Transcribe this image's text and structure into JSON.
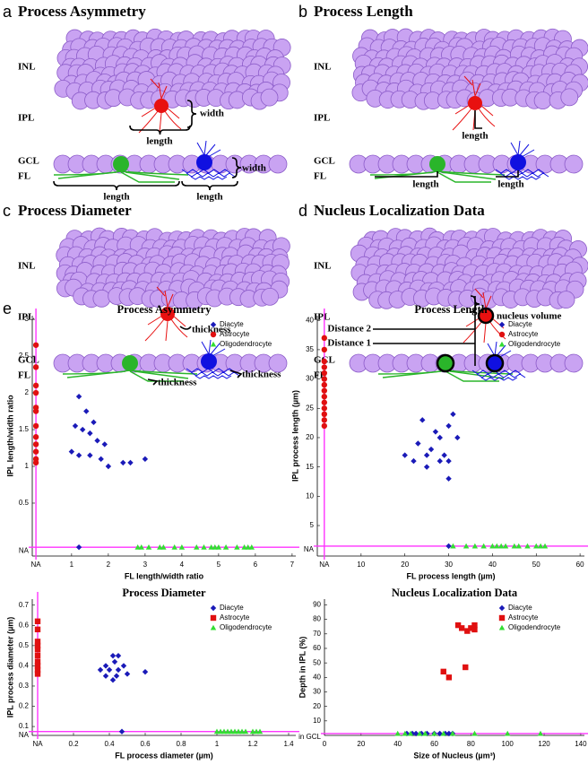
{
  "figure": {
    "panels": [
      {
        "letter": "a",
        "title": "Process Asymmetry",
        "labels": [
          "INL",
          "IPL",
          "GCL",
          "FL",
          "width",
          "length",
          "width",
          "length",
          "length"
        ]
      },
      {
        "letter": "b",
        "title": "Process Length",
        "labels": [
          "INL",
          "IPL",
          "GCL",
          "FL",
          "length",
          "length",
          "length"
        ]
      },
      {
        "letter": "c",
        "title": "Process Diameter",
        "labels": [
          "INL",
          "IPL",
          "GCL",
          "FL",
          "thickness",
          "thickness",
          "thickness"
        ]
      },
      {
        "letter": "d",
        "title": "Nucleus Localization Data",
        "labels": [
          "INL",
          "IPL",
          "GCL",
          "FL",
          "nucleus volume",
          "Distance 2",
          "Distance 1"
        ]
      }
    ],
    "chart_panel_letter": "e"
  },
  "chart_data": [
    {
      "type": "scatter",
      "title": "Process Asymmetry",
      "x_label": "FL length/width ratio",
      "y_label": "IPL length/width ratio",
      "xlim": [
        -0.07,
        7.1
      ],
      "ylim": [
        -0.22,
        3.05
      ],
      "xticks": [
        {
          "value": 0.03,
          "label": "NA"
        },
        1,
        2,
        3,
        4,
        5,
        6,
        7
      ],
      "yticks": [
        {
          "value": -0.1,
          "label": "NA"
        },
        0.5,
        1,
        1.5,
        2,
        2.5,
        3
      ],
      "na_line_color": "#ff33ff",
      "legend": "upper right",
      "series": [
        {
          "name": "Diacyte",
          "color": "#1a1ab8",
          "marker": "diamond",
          "x": [
            1.2,
            1.4,
            1.1,
            1.3,
            1.6,
            1.5,
            1.7,
            1.9,
            1.0,
            1.2,
            1.5,
            1.8,
            2.0,
            2.4,
            2.6,
            3.0,
            1.2
          ],
          "values": [
            1.95,
            1.75,
            1.55,
            1.5,
            1.6,
            1.45,
            1.35,
            1.3,
            1.2,
            1.15,
            1.15,
            1.1,
            1.0,
            1.05,
            1.05,
            1.1,
            -0.1
          ]
        },
        {
          "name": "Astrocyte",
          "color": "#e01010",
          "marker": "circle",
          "x": [
            0.03,
            0.03,
            0.03,
            0.03,
            0.03,
            0.03,
            0.03,
            0.03,
            0.03,
            0.03,
            0.03,
            0.03
          ],
          "values": [
            2.65,
            2.35,
            2.1,
            2.0,
            1.8,
            1.75,
            1.55,
            1.4,
            1.3,
            1.2,
            1.1,
            1.05
          ]
        },
        {
          "name": "Oligodendrocyte",
          "color": "#33dd33",
          "marker": "triangle",
          "x": [
            2.8,
            2.9,
            3.1,
            3.4,
            3.5,
            3.8,
            4.0,
            4.4,
            4.6,
            4.8,
            4.9,
            5.0,
            5.2,
            5.5,
            5.7,
            5.8,
            5.9
          ],
          "values": [
            -0.1,
            -0.1,
            -0.1,
            -0.1,
            -0.1,
            -0.1,
            -0.1,
            -0.1,
            -0.1,
            -0.1,
            -0.1,
            -0.1,
            -0.1,
            -0.1,
            -0.1,
            -0.1,
            -0.1
          ]
        }
      ]
    },
    {
      "type": "scatter",
      "title": "Process Length",
      "x_label": "FL process length (µm)",
      "y_label": "IPL process length (µm)",
      "xlim": [
        0,
        61
      ],
      "ylim": [
        -0.2,
        40.8
      ],
      "xticks": [
        {
          "value": 1.6,
          "label": "NA"
        },
        10,
        20,
        30,
        40,
        50,
        60
      ],
      "yticks": [
        {
          "value": 1.5,
          "label": "NA"
        },
        5,
        10,
        15,
        20,
        25,
        30,
        35,
        40
      ],
      "na_line_color": "#ff33ff",
      "legend": "upper right",
      "series": [
        {
          "name": "Diacyte",
          "color": "#1a1ab8",
          "marker": "diamond",
          "x": [
            20,
            22,
            23,
            24,
            25,
            25,
            26,
            27,
            28,
            28,
            29,
            30,
            30,
            30,
            31,
            32,
            30
          ],
          "values": [
            17,
            16,
            19,
            23,
            15,
            17,
            18,
            21,
            20,
            16,
            17,
            16,
            13,
            22,
            24,
            20,
            1.5
          ]
        },
        {
          "name": "Astrocyte",
          "color": "#e01010",
          "marker": "circle",
          "x": [
            1.6,
            1.6,
            1.6,
            1.6,
            1.6,
            1.6,
            1.6,
            1.6,
            1.6,
            1.6,
            1.6,
            1.6,
            1.6,
            1.6
          ],
          "values": [
            37,
            35,
            33,
            32,
            31,
            30,
            29,
            28,
            27,
            26,
            25,
            24,
            23,
            22
          ]
        },
        {
          "name": "Oligodendrocyte",
          "color": "#33dd33",
          "marker": "triangle",
          "x": [
            31,
            34,
            36,
            38,
            40,
            41,
            42,
            43,
            45,
            46,
            48,
            50,
            51,
            52
          ],
          "values": [
            1.5,
            1.5,
            1.5,
            1.5,
            1.5,
            1.5,
            1.5,
            1.5,
            1.5,
            1.5,
            1.5,
            1.5,
            1.5,
            1.5
          ]
        }
      ]
    },
    {
      "type": "scatter",
      "title": "Process Diameter",
      "x_label": "FL process diameter (µm)",
      "y_label": "IPL process diameter (µm)",
      "xlim": [
        -0.03,
        1.44
      ],
      "ylim": [
        0.056,
        0.73
      ],
      "xticks": [
        {
          "value": 0,
          "label": "NA"
        },
        0.2,
        0.4,
        0.6,
        0.8,
        1,
        1.2,
        1.4
      ],
      "yticks": [
        {
          "value": 0.075,
          "label": "NA"
        },
        0.1,
        0.2,
        0.3,
        0.4,
        0.5,
        0.6,
        0.7
      ],
      "na_line_color": "#ff33ff",
      "legend": "upper right",
      "series": [
        {
          "name": "Diacyte",
          "color": "#1a1ab8",
          "marker": "diamond",
          "x": [
            0.38,
            0.4,
            0.42,
            0.43,
            0.45,
            0.42,
            0.38,
            0.45,
            0.48,
            0.5,
            0.35,
            0.6,
            0.44,
            0.47
          ],
          "values": [
            0.4,
            0.38,
            0.45,
            0.42,
            0.45,
            0.33,
            0.35,
            0.38,
            0.4,
            0.36,
            0.38,
            0.37,
            0.35,
            0.075
          ]
        },
        {
          "name": "Astrocyte",
          "color": "#e01010",
          "marker": "square",
          "x": [
            0,
            0,
            0,
            0,
            0,
            0,
            0,
            0,
            0,
            0
          ],
          "values": [
            0.62,
            0.58,
            0.52,
            0.5,
            0.48,
            0.45,
            0.42,
            0.4,
            0.38,
            0.36
          ]
        },
        {
          "name": "Oligodendrocyte",
          "color": "#33dd33",
          "marker": "triangle",
          "x": [
            1.0,
            1.02,
            1.04,
            1.06,
            1.08,
            1.1,
            1.12,
            1.14,
            1.16,
            1.2,
            1.22,
            1.24
          ],
          "values": [
            0.075,
            0.075,
            0.075,
            0.075,
            0.075,
            0.075,
            0.075,
            0.075,
            0.075,
            0.075,
            0.075,
            0.075
          ]
        }
      ]
    },
    {
      "type": "scatter",
      "title": "Nucleus Localization Data",
      "x_label": "Size of Nucleus (µm³)",
      "y_label": "Depth in IPL (%)",
      "xlim": [
        0,
        142
      ],
      "ylim": [
        0,
        94
      ],
      "xticks": [
        0,
        20,
        40,
        60,
        80,
        100,
        120,
        140
      ],
      "yticks": [
        {
          "value": 1.3,
          "label": "in GCL"
        },
        10,
        20,
        30,
        40,
        50,
        60,
        70,
        80,
        90
      ],
      "na_line_color": "#ff33ff",
      "legend": "upper right",
      "series": [
        {
          "name": "Diacyte",
          "color": "#1a1ab8",
          "marker": "diamond",
          "x": [
            45,
            48,
            50,
            53,
            56,
            60,
            63,
            66,
            68,
            70
          ],
          "values": [
            1.3,
            1.3,
            1.3,
            1.3,
            1.3,
            1.3,
            1.3,
            1.3,
            1.3,
            1.3
          ]
        },
        {
          "name": "Astrocyte",
          "color": "#e01010",
          "marker": "square",
          "x": [
            73,
            75,
            80,
            82,
            82,
            78,
            77,
            65,
            68
          ],
          "values": [
            76,
            74,
            74,
            76,
            73,
            72,
            47,
            44,
            40
          ]
        },
        {
          "name": "Oligodendrocyte",
          "color": "#33dd33",
          "marker": "triangle",
          "x": [
            40,
            44,
            47,
            52,
            55,
            60,
            65,
            70,
            82,
            100,
            118
          ],
          "values": [
            1.3,
            1.3,
            1.3,
            1.3,
            1.3,
            1.3,
            1.3,
            1.3,
            1.3,
            1.3,
            1.3
          ]
        }
      ]
    }
  ]
}
